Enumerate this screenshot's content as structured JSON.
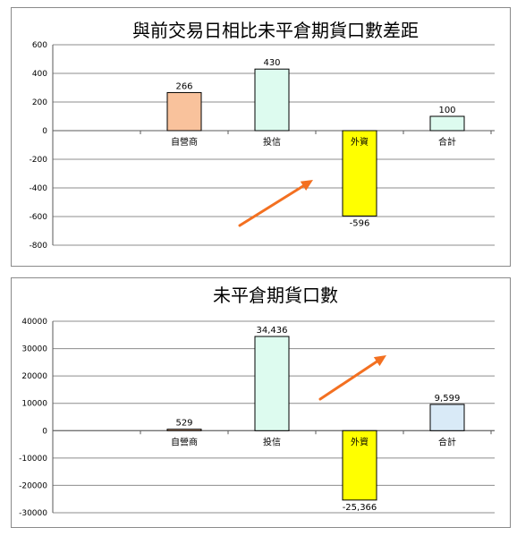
{
  "chart_data": [
    {
      "type": "bar",
      "title": "與前交易日相比未平倉期貨口數差距",
      "categories": [
        "",
        "自營商",
        "投信",
        "外資",
        "合計"
      ],
      "values": [
        null,
        266,
        430,
        -596,
        100
      ],
      "value_labels": [
        "",
        "266",
        "430",
        "-596",
        "100"
      ],
      "bar_colors": [
        "",
        "#f9c29c",
        "#ddfbef",
        "#ffff00",
        "#ddfbef"
      ],
      "label_colors": [
        "",
        "#000000",
        "#000000",
        "#ff0000",
        "#000000"
      ],
      "ylim": [
        -800,
        600
      ],
      "yticks": [
        "600",
        "400",
        "200",
        "0",
        "-200",
        "-400",
        "-600",
        "-800"
      ],
      "grid": true,
      "xlabel": "",
      "ylabel": "",
      "annotation": "orange arrow pointing up-right"
    },
    {
      "type": "bar",
      "title": "未平倉期貨口數",
      "categories": [
        "",
        "自營商",
        "投信",
        "外資",
        "合計"
      ],
      "values": [
        null,
        529,
        34436,
        -25366,
        9599
      ],
      "value_labels": [
        "",
        "529",
        "34,436",
        "-25,366",
        "9,599"
      ],
      "bar_colors": [
        "",
        "#f9c29c",
        "#ddfbef",
        "#ffff00",
        "#d9eaf7"
      ],
      "label_colors": [
        "",
        "#000000",
        "#000000",
        "#ff0000",
        "#000000"
      ],
      "ylim": [
        -30000,
        40000
      ],
      "yticks": [
        "40000",
        "30000",
        "20000",
        "10000",
        "0",
        "-10000",
        "-20000",
        "-30000"
      ],
      "grid": true,
      "xlabel": "",
      "ylabel": "",
      "annotation": "orange arrow pointing up-right"
    }
  ],
  "colors": {
    "arrow": "#f37021",
    "grid": "#8c8c8c"
  }
}
